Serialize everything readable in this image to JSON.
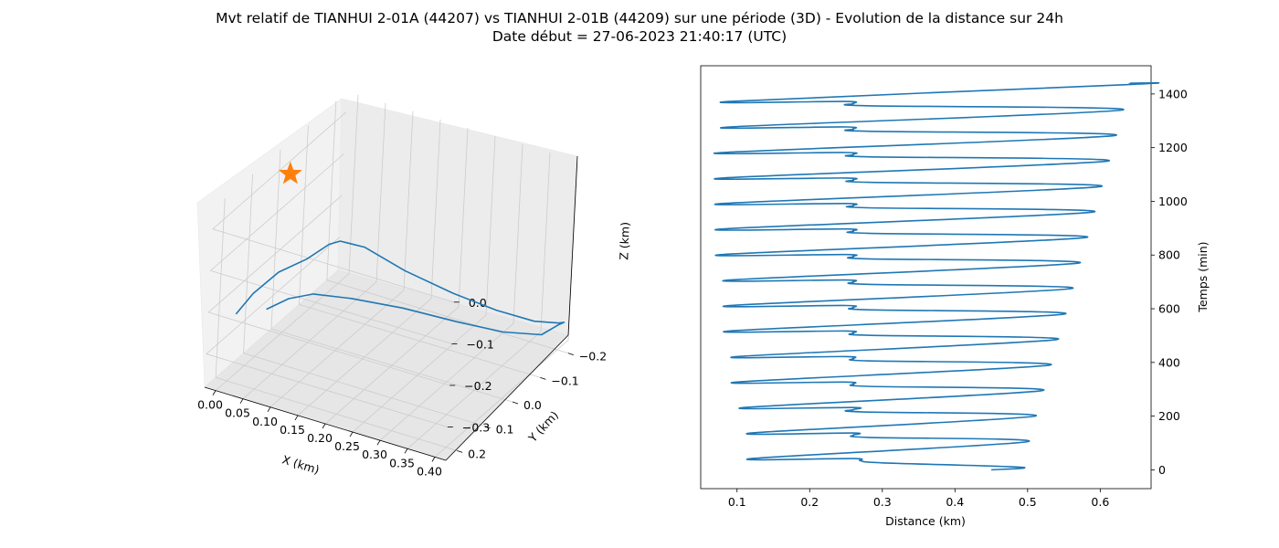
{
  "figure": {
    "title": "Mvt relatif de TIANHUI 2-01A (44207) vs TIANHUI 2-01B (44209) sur une période (3D) - Evolution de la distance sur 24h",
    "subtitle": "Date début = 27-06-2023 21:40:17 (UTC)"
  },
  "colors": {
    "series": "#1f77b4",
    "marker": "#ff7f0e",
    "pane": "#f2f2f2",
    "grid": "#cccccc"
  },
  "chart_data": [
    {
      "type": "line3d",
      "xlabel": "X (km)",
      "ylabel": "Y (km)",
      "zlabel": "Z (km)",
      "x_ticks": [
        "0.00",
        "0.05",
        "0.10",
        "0.15",
        "0.20",
        "0.25",
        "0.30",
        "0.35",
        "0.40"
      ],
      "y_ticks": [
        "−0.2",
        "−0.1",
        "0.0",
        "0.1",
        "0.2"
      ],
      "z_ticks": [
        "0.0",
        "−0.1",
        "−0.2",
        "−0.3"
      ],
      "xlim": [
        -0.02,
        0.42
      ],
      "ylim": [
        -0.24,
        0.24
      ],
      "zlim": [
        -0.38,
        0.05
      ],
      "marker": {
        "shape": "star",
        "x": 0.0,
        "y": 0.0,
        "z": 0.0
      },
      "trajectory_estimated": {
        "x": [
          0.02,
          0.03,
          0.05,
          0.08,
          0.1,
          0.11,
          0.14,
          0.2,
          0.27,
          0.33,
          0.38,
          0.41,
          0.41,
          0.4,
          0.38,
          0.33,
          0.27,
          0.2,
          0.14,
          0.1,
          0.08,
          0.06
        ],
        "y": [
          0.22,
          0.18,
          0.13,
          0.09,
          0.05,
          0.03,
          0.0,
          -0.03,
          -0.07,
          -0.11,
          -0.15,
          -0.18,
          -0.2,
          -0.2,
          -0.18,
          -0.14,
          -0.09,
          -0.03,
          0.04,
          0.1,
          0.15,
          0.19
        ],
        "z": [
          -0.2,
          -0.17,
          -0.14,
          -0.12,
          -0.1,
          -0.1,
          -0.12,
          -0.17,
          -0.22,
          -0.26,
          -0.29,
          -0.3,
          -0.31,
          -0.32,
          -0.34,
          -0.33,
          -0.3,
          -0.26,
          -0.22,
          -0.19,
          -0.18,
          -0.19
        ]
      }
    },
    {
      "type": "line",
      "xlabel": "Distance (km)",
      "ylabel": "Temps (min)",
      "xlim": [
        0.05,
        0.67
      ],
      "ylim": [
        -70,
        1505
      ],
      "x_ticks": [
        0.1,
        0.2,
        0.3,
        0.4,
        0.5,
        0.6
      ],
      "y_ticks": [
        0,
        200,
        400,
        600,
        800,
        1000,
        1200,
        1400
      ],
      "grid": false,
      "series": [
        {
          "x": [
            0.45,
            0.49,
            0.3,
            0.27,
            0.26,
            0.12,
            0.5,
            0.28,
            0.26,
            0.26,
            0.12,
            0.51,
            0.27,
            0.26,
            0.26,
            0.11,
            0.52,
            0.28,
            0.26,
            0.25,
            0.1,
            0.53,
            0.28,
            0.26,
            0.25,
            0.1,
            0.54,
            0.28,
            0.26,
            0.25,
            0.09,
            0.55,
            0.28,
            0.26,
            0.25,
            0.09,
            0.56,
            0.28,
            0.26,
            0.25,
            0.09,
            0.57,
            0.28,
            0.26,
            0.25,
            0.08,
            0.58,
            0.28,
            0.26,
            0.25,
            0.08,
            0.59,
            0.28,
            0.26,
            0.25,
            0.08,
            0.6,
            0.28,
            0.26,
            0.25,
            0.08,
            0.61,
            0.28,
            0.26,
            0.25,
            0.08,
            0.62,
            0.28,
            0.26,
            0.25,
            0.09,
            0.63,
            0.28,
            0.26,
            0.25,
            0.09,
            0.64,
            0.64
          ],
          "y": [
            0,
            10,
            26,
            34,
            42,
            42,
            105,
            121,
            129,
            137,
            137,
            200,
            216,
            224,
            232,
            232,
            295,
            311,
            319,
            327,
            327,
            390,
            406,
            414,
            422,
            422,
            485,
            501,
            509,
            517,
            517,
            580,
            596,
            604,
            612,
            612,
            675,
            691,
            699,
            707,
            707,
            770,
            786,
            794,
            802,
            802,
            865,
            881,
            889,
            897,
            897,
            960,
            976,
            984,
            992,
            992,
            1055,
            1071,
            1079,
            1087,
            1087,
            1150,
            1166,
            1174,
            1182,
            1182,
            1245,
            1261,
            1269,
            1277,
            1277,
            1340,
            1356,
            1364,
            1372,
            1372,
            1435,
            1440
          ]
        }
      ]
    }
  ]
}
